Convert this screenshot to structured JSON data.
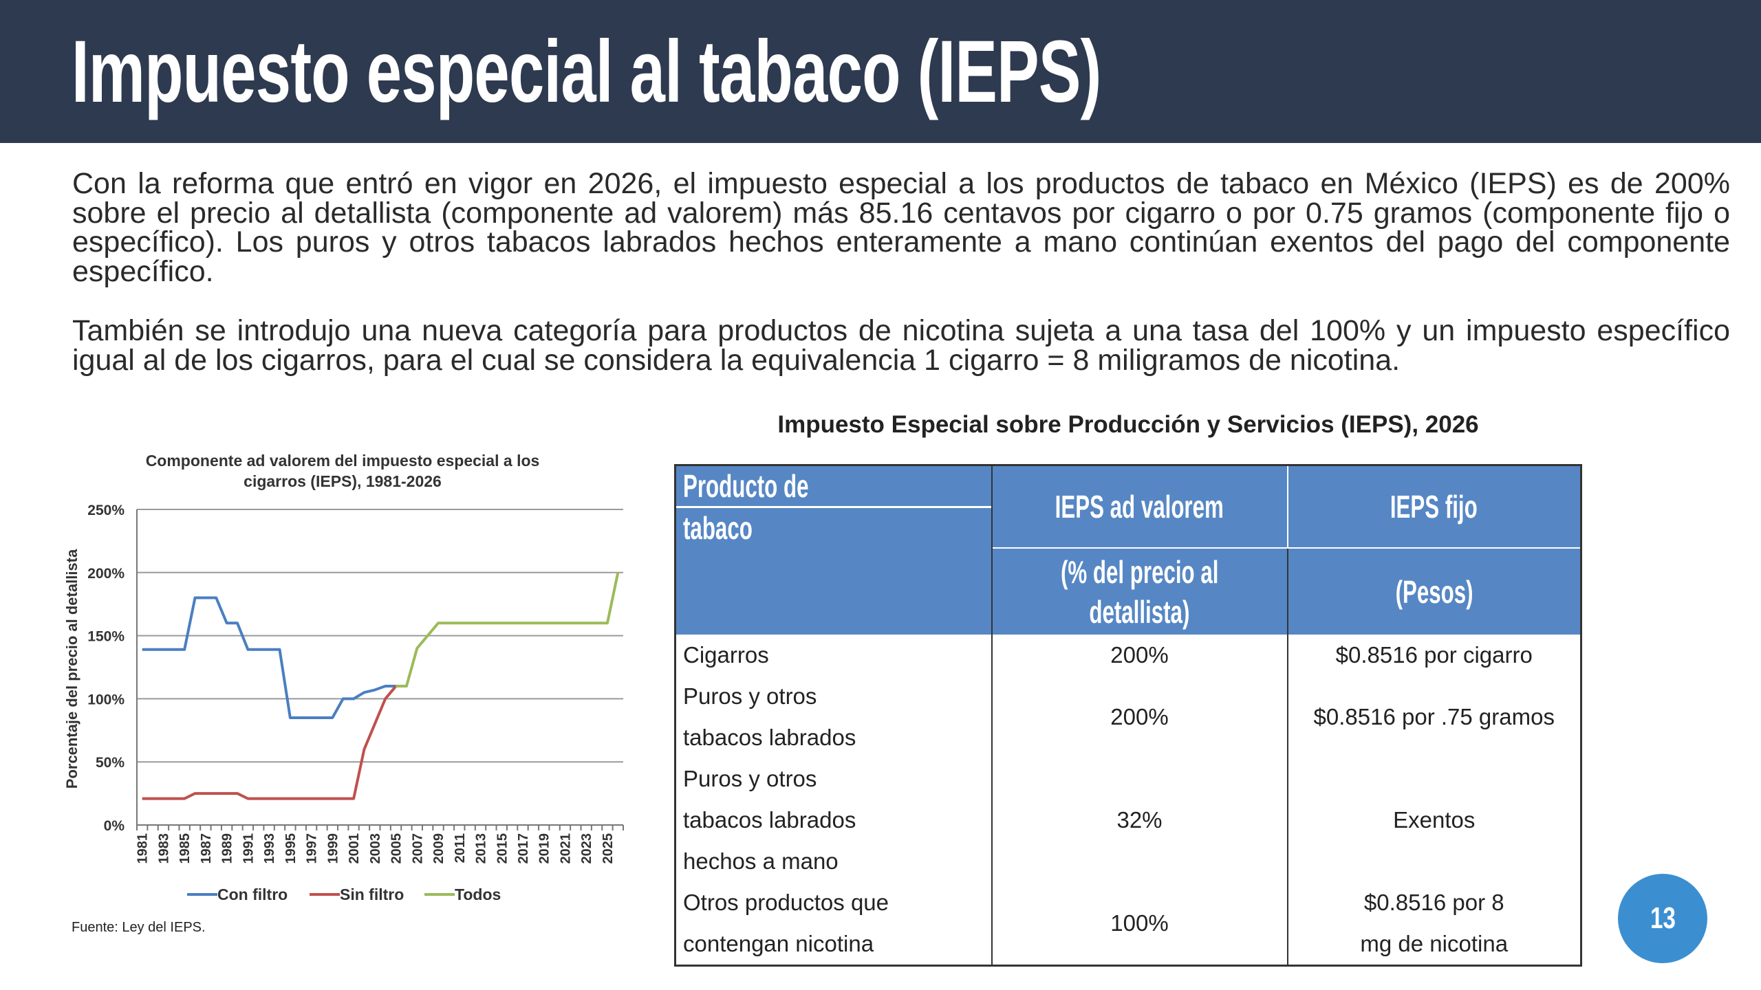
{
  "header": {
    "title": "Impuesto especial al tabaco (IEPS)"
  },
  "paragraphs": [
    "Con la reforma que entró en vigor en 2026, el impuesto especial a los productos de tabaco en México (IEPS) es de 200% sobre el precio al detallista (componente ad valorem) más 85.16 centavos por cigarro o por 0.75 gramos (componente fijo o específico). Los puros y otros tabacos labrados hechos enteramente a mano continúan exentos del pago del componente específico.",
    "También se introdujo una nueva categoría para productos de nicotina sujeta a una tasa del 100% y un impuesto específico igual al de los cigarros, para el cual se considera la equivalencia 1 cigarro = 8 miligramos de nicotina."
  ],
  "table": {
    "title": "Impuesto Especial sobre Producción y Servicios (IEPS), 2026",
    "headers": {
      "product_1": "Producto de",
      "product_2": "tabaco",
      "adval": "IEPS ad valorem",
      "adval_sub_1": "(% del precio al",
      "adval_sub_2": "detallista)",
      "fijo": "IEPS fijo",
      "fijo_sub": "(Pesos)"
    },
    "rows": [
      {
        "product": [
          "Cigarros"
        ],
        "adval": "200%",
        "fijo": [
          "$0.8516 por cigarro"
        ]
      },
      {
        "product": [
          "Puros y otros",
          "tabacos labrados"
        ],
        "adval": "200%",
        "fijo": [
          "$0.8516 por .75 gramos"
        ]
      },
      {
        "product": [
          "Puros y otros",
          "tabacos labrados",
          "hechos a mano"
        ],
        "adval": "32%",
        "fijo": [
          "Exentos"
        ]
      },
      {
        "product": [
          "Otros productos que",
          "contengan nicotina"
        ],
        "adval": "100%",
        "fijo": [
          "$0.8516 por 8",
          "mg de nicotina"
        ]
      }
    ]
  },
  "source": "Fuente: Ley del IEPS.",
  "page_number": "13",
  "chart_data": {
    "type": "line",
    "title": [
      "Componente ad valorem del impuesto especial a los",
      "cigarros (IEPS), 1981-2026"
    ],
    "xlabel": "",
    "ylabel": "Porcentaje del precio al detallista",
    "ylim": [
      0,
      250
    ],
    "yticks": [
      "0%",
      "50%",
      "100%",
      "150%",
      "200%",
      "250%"
    ],
    "x_start": 1981,
    "x_end": 2026,
    "xtick_labels": [
      "1981",
      "1983",
      "1985",
      "1987",
      "1989",
      "1991",
      "1993",
      "1995",
      "1997",
      "1999",
      "2001",
      "2003",
      "2005",
      "2007",
      "2009",
      "2011",
      "2013",
      "2015",
      "2017",
      "2019",
      "2021",
      "2023",
      "2025"
    ],
    "grid": true,
    "legend": "bottom",
    "series": [
      {
        "name": "Con filtro",
        "color": "#4a7fc1",
        "points": [
          [
            1981,
            139
          ],
          [
            1982,
            139
          ],
          [
            1983,
            139
          ],
          [
            1984,
            139
          ],
          [
            1985,
            139
          ],
          [
            1986,
            180
          ],
          [
            1987,
            180
          ],
          [
            1988,
            180
          ],
          [
            1989,
            160
          ],
          [
            1990,
            160
          ],
          [
            1991,
            139
          ],
          [
            1992,
            139
          ],
          [
            1993,
            139
          ],
          [
            1994,
            139
          ],
          [
            1995,
            85
          ],
          [
            1996,
            85
          ],
          [
            1997,
            85
          ],
          [
            1998,
            85
          ],
          [
            1999,
            85
          ],
          [
            2000,
            100
          ],
          [
            2001,
            100
          ],
          [
            2002,
            105
          ],
          [
            2003,
            107
          ],
          [
            2004,
            110
          ],
          [
            2005,
            110
          ]
        ]
      },
      {
        "name": "Sin filtro",
        "color": "#c0504d",
        "points": [
          [
            1981,
            20.9
          ],
          [
            1982,
            20.9
          ],
          [
            1983,
            20.9
          ],
          [
            1984,
            20.9
          ],
          [
            1985,
            20.9
          ],
          [
            1986,
            25
          ],
          [
            1987,
            25
          ],
          [
            1988,
            25
          ],
          [
            1989,
            25
          ],
          [
            1990,
            25
          ],
          [
            1991,
            20.9
          ],
          [
            1992,
            20.9
          ],
          [
            1993,
            20.9
          ],
          [
            1994,
            20.9
          ],
          [
            1995,
            20.9
          ],
          [
            1996,
            20.9
          ],
          [
            1997,
            20.9
          ],
          [
            1998,
            20.9
          ],
          [
            1999,
            20.9
          ],
          [
            2000,
            20.9
          ],
          [
            2001,
            20.9
          ],
          [
            2002,
            60
          ],
          [
            2003,
            80
          ],
          [
            2004,
            100
          ],
          [
            2005,
            110
          ]
        ]
      },
      {
        "name": "Todos",
        "color": "#9bbb59",
        "points": [
          [
            2005,
            110
          ],
          [
            2006,
            110
          ],
          [
            2007,
            140
          ],
          [
            2008,
            150
          ],
          [
            2009,
            160
          ],
          [
            2010,
            160
          ],
          [
            2011,
            160
          ],
          [
            2012,
            160
          ],
          [
            2013,
            160
          ],
          [
            2014,
            160
          ],
          [
            2015,
            160
          ],
          [
            2016,
            160
          ],
          [
            2017,
            160
          ],
          [
            2018,
            160
          ],
          [
            2019,
            160
          ],
          [
            2020,
            160
          ],
          [
            2021,
            160
          ],
          [
            2022,
            160
          ],
          [
            2023,
            160
          ],
          [
            2024,
            160
          ],
          [
            2025,
            160
          ],
          [
            2026,
            200
          ]
        ]
      }
    ]
  }
}
